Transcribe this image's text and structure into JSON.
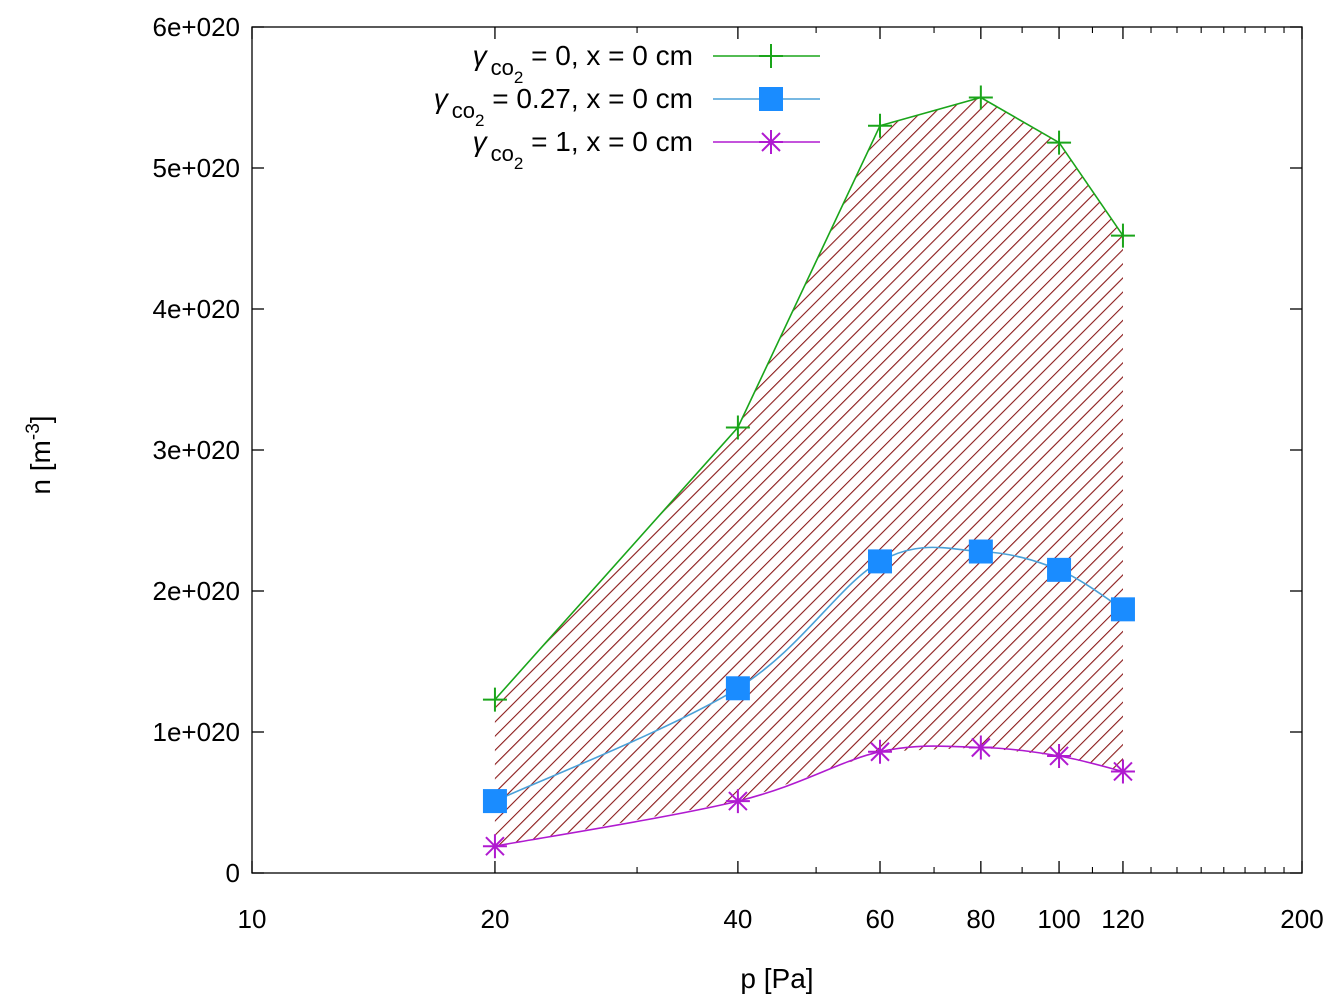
{
  "chart_data": {
    "type": "line",
    "title": "",
    "xlabel": "p [Pa]",
    "ylabel_base": "n [m",
    "ylabel_exp": "-3",
    "ylabel_close": "]",
    "x_scale": "log",
    "xlim": [
      10,
      200
    ],
    "ylim": [
      0,
      6e+20
    ],
    "x_ticks": [
      {
        "value": 10,
        "label": "10"
      },
      {
        "value": 20,
        "label": "20"
      },
      {
        "value": 40,
        "label": "40"
      },
      {
        "value": 60,
        "label": "60"
      },
      {
        "value": 80,
        "label": "80"
      },
      {
        "value": 100,
        "label": "100"
      },
      {
        "value": 120,
        "label": "120"
      },
      {
        "value": 200,
        "label": "200"
      }
    ],
    "y_ticks": [
      {
        "value": 0,
        "label": "0"
      },
      {
        "value": 1e+20,
        "label": "1e+020"
      },
      {
        "value": 2e+20,
        "label": "2e+020"
      },
      {
        "value": 3e+20,
        "label": "3e+020"
      },
      {
        "value": 4e+20,
        "label": "4e+020"
      },
      {
        "value": 5e+20,
        "label": "5e+020"
      },
      {
        "value": 6e+20,
        "label": "6e+020"
      }
    ],
    "x": [
      20,
      40,
      60,
      80,
      100,
      120
    ],
    "series": [
      {
        "name": "γ co2 = 0, x = 0 cm",
        "legend_gamma": "γ",
        "legend_sub": "co",
        "legend_subsub": "2",
        "legend_rest": " = 0, x = 0 cm",
        "marker": "plus",
        "color": "#1aa51a",
        "values": [
          1.23e+20,
          3.16e+20,
          5.3e+20,
          5.5e+20,
          5.18e+20,
          4.52e+20
        ]
      },
      {
        "name": "γ co2 = 0.27, x = 0 cm",
        "legend_gamma": "γ",
        "legend_sub": "co",
        "legend_subsub": "2",
        "legend_rest": " = 0.27, x = 0 cm",
        "marker": "square",
        "color": "#1a8cff",
        "line_color": "#4aa0d8",
        "values": [
          5.1e+19,
          1.31e+20,
          2.21e+20,
          2.28e+20,
          2.15e+20,
          1.87e+20
        ]
      },
      {
        "name": "γ co2 = 1, x = 0 cm",
        "legend_gamma": "γ",
        "legend_sub": "co",
        "legend_subsub": "2",
        "legend_rest": " = 1, x = 0 cm",
        "marker": "star",
        "color": "#b01ad0",
        "values": [
          1.9e+19,
          5.1e+19,
          8.6e+19,
          8.9e+19,
          8.3e+19,
          7.2e+19
        ]
      }
    ],
    "shaded_region": {
      "between": [
        "γ co2 = 0, x = 0 cm",
        "γ co2 = 1, x = 0 cm"
      ],
      "pattern": "diagonal-hatch",
      "color": "#8b1a1a"
    },
    "legend_position": "top-left"
  }
}
